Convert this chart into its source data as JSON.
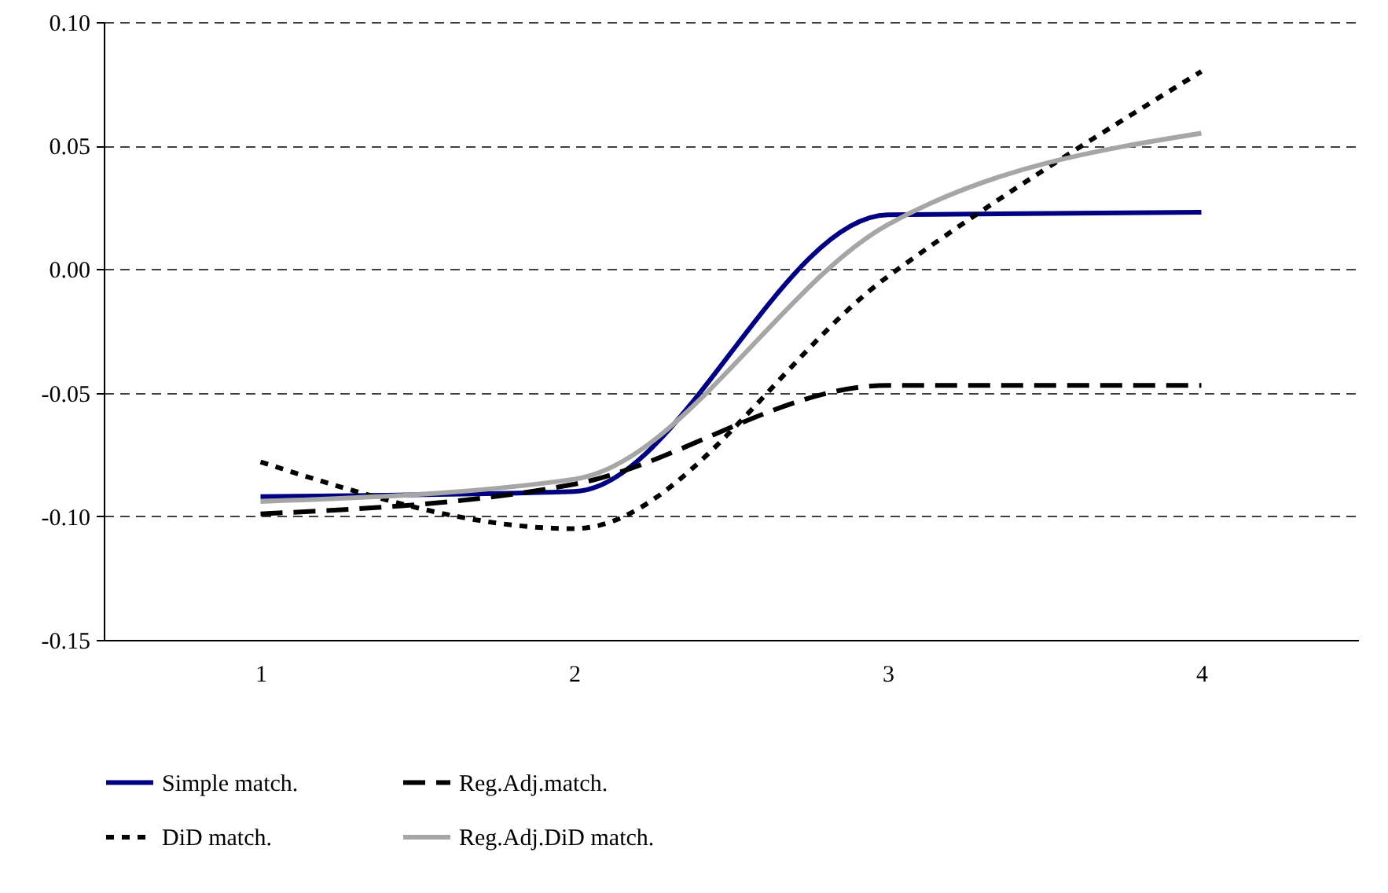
{
  "chart_data": {
    "type": "line",
    "categories": [
      "1",
      "2",
      "3",
      "4"
    ],
    "series": [
      {
        "name": "Simple match.",
        "color": "#000080",
        "line_style": "solid",
        "values": [
          -0.092,
          -0.09,
          0.022,
          0.023
        ]
      },
      {
        "name": "Reg.Adj.match.",
        "color": "#000000",
        "line_style": "dashed",
        "values": [
          -0.099,
          -0.087,
          -0.047,
          -0.047
        ]
      },
      {
        "name": "DiD match.",
        "color": "#000000",
        "line_style": "dotted",
        "values": [
          -0.078,
          -0.105,
          -0.003,
          0.08
        ]
      },
      {
        "name": "Reg.Adj.DiD match.",
        "color": "#a6a6a6",
        "line_style": "solid",
        "values": [
          -0.094,
          -0.085,
          0.018,
          0.055
        ]
      }
    ],
    "ylim": [
      -0.15,
      0.1
    ],
    "yticks": [
      {
        "value": -0.15,
        "label": "-0.15"
      },
      {
        "value": -0.1,
        "label": "-0.10"
      },
      {
        "value": -0.05,
        "label": "-0.05"
      },
      {
        "value": 0,
        "label": "0.00"
      },
      {
        "value": 0.05,
        "label": "0.05"
      },
      {
        "value": 0.1,
        "label": "0.10"
      }
    ],
    "grid": "y",
    "legend": "bottom",
    "marker": "none"
  }
}
